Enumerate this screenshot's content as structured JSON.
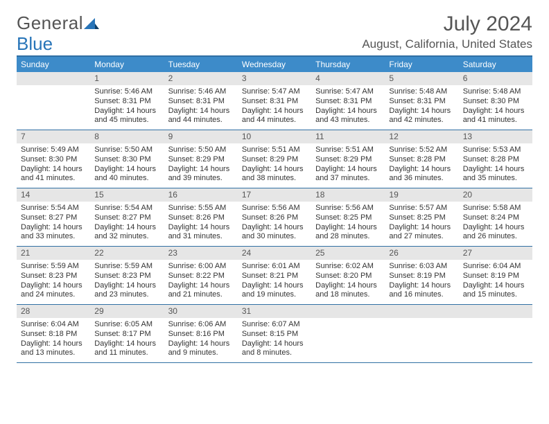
{
  "logo": {
    "part1": "General",
    "part2": "Blue"
  },
  "title": "July 2024",
  "location": "August, California, United States",
  "colors": {
    "header_bar": "#3d8bc9",
    "rule": "#2f6fa3",
    "daynum_bg": "#e6e6e6",
    "text": "#333333",
    "muted": "#555555",
    "logo_blue": "#2774b8"
  },
  "days_of_week": [
    "Sunday",
    "Monday",
    "Tuesday",
    "Wednesday",
    "Thursday",
    "Friday",
    "Saturday"
  ],
  "weeks": [
    [
      {
        "n": "",
        "sunrise": "",
        "sunset": "",
        "daylight": ""
      },
      {
        "n": "1",
        "sunrise": "Sunrise: 5:46 AM",
        "sunset": "Sunset: 8:31 PM",
        "daylight": "Daylight: 14 hours and 45 minutes."
      },
      {
        "n": "2",
        "sunrise": "Sunrise: 5:46 AM",
        "sunset": "Sunset: 8:31 PM",
        "daylight": "Daylight: 14 hours and 44 minutes."
      },
      {
        "n": "3",
        "sunrise": "Sunrise: 5:47 AM",
        "sunset": "Sunset: 8:31 PM",
        "daylight": "Daylight: 14 hours and 44 minutes."
      },
      {
        "n": "4",
        "sunrise": "Sunrise: 5:47 AM",
        "sunset": "Sunset: 8:31 PM",
        "daylight": "Daylight: 14 hours and 43 minutes."
      },
      {
        "n": "5",
        "sunrise": "Sunrise: 5:48 AM",
        "sunset": "Sunset: 8:31 PM",
        "daylight": "Daylight: 14 hours and 42 minutes."
      },
      {
        "n": "6",
        "sunrise": "Sunrise: 5:48 AM",
        "sunset": "Sunset: 8:30 PM",
        "daylight": "Daylight: 14 hours and 41 minutes."
      }
    ],
    [
      {
        "n": "7",
        "sunrise": "Sunrise: 5:49 AM",
        "sunset": "Sunset: 8:30 PM",
        "daylight": "Daylight: 14 hours and 41 minutes."
      },
      {
        "n": "8",
        "sunrise": "Sunrise: 5:50 AM",
        "sunset": "Sunset: 8:30 PM",
        "daylight": "Daylight: 14 hours and 40 minutes."
      },
      {
        "n": "9",
        "sunrise": "Sunrise: 5:50 AM",
        "sunset": "Sunset: 8:29 PM",
        "daylight": "Daylight: 14 hours and 39 minutes."
      },
      {
        "n": "10",
        "sunrise": "Sunrise: 5:51 AM",
        "sunset": "Sunset: 8:29 PM",
        "daylight": "Daylight: 14 hours and 38 minutes."
      },
      {
        "n": "11",
        "sunrise": "Sunrise: 5:51 AM",
        "sunset": "Sunset: 8:29 PM",
        "daylight": "Daylight: 14 hours and 37 minutes."
      },
      {
        "n": "12",
        "sunrise": "Sunrise: 5:52 AM",
        "sunset": "Sunset: 8:28 PM",
        "daylight": "Daylight: 14 hours and 36 minutes."
      },
      {
        "n": "13",
        "sunrise": "Sunrise: 5:53 AM",
        "sunset": "Sunset: 8:28 PM",
        "daylight": "Daylight: 14 hours and 35 minutes."
      }
    ],
    [
      {
        "n": "14",
        "sunrise": "Sunrise: 5:54 AM",
        "sunset": "Sunset: 8:27 PM",
        "daylight": "Daylight: 14 hours and 33 minutes."
      },
      {
        "n": "15",
        "sunrise": "Sunrise: 5:54 AM",
        "sunset": "Sunset: 8:27 PM",
        "daylight": "Daylight: 14 hours and 32 minutes."
      },
      {
        "n": "16",
        "sunrise": "Sunrise: 5:55 AM",
        "sunset": "Sunset: 8:26 PM",
        "daylight": "Daylight: 14 hours and 31 minutes."
      },
      {
        "n": "17",
        "sunrise": "Sunrise: 5:56 AM",
        "sunset": "Sunset: 8:26 PM",
        "daylight": "Daylight: 14 hours and 30 minutes."
      },
      {
        "n": "18",
        "sunrise": "Sunrise: 5:56 AM",
        "sunset": "Sunset: 8:25 PM",
        "daylight": "Daylight: 14 hours and 28 minutes."
      },
      {
        "n": "19",
        "sunrise": "Sunrise: 5:57 AM",
        "sunset": "Sunset: 8:25 PM",
        "daylight": "Daylight: 14 hours and 27 minutes."
      },
      {
        "n": "20",
        "sunrise": "Sunrise: 5:58 AM",
        "sunset": "Sunset: 8:24 PM",
        "daylight": "Daylight: 14 hours and 26 minutes."
      }
    ],
    [
      {
        "n": "21",
        "sunrise": "Sunrise: 5:59 AM",
        "sunset": "Sunset: 8:23 PM",
        "daylight": "Daylight: 14 hours and 24 minutes."
      },
      {
        "n": "22",
        "sunrise": "Sunrise: 5:59 AM",
        "sunset": "Sunset: 8:23 PM",
        "daylight": "Daylight: 14 hours and 23 minutes."
      },
      {
        "n": "23",
        "sunrise": "Sunrise: 6:00 AM",
        "sunset": "Sunset: 8:22 PM",
        "daylight": "Daylight: 14 hours and 21 minutes."
      },
      {
        "n": "24",
        "sunrise": "Sunrise: 6:01 AM",
        "sunset": "Sunset: 8:21 PM",
        "daylight": "Daylight: 14 hours and 19 minutes."
      },
      {
        "n": "25",
        "sunrise": "Sunrise: 6:02 AM",
        "sunset": "Sunset: 8:20 PM",
        "daylight": "Daylight: 14 hours and 18 minutes."
      },
      {
        "n": "26",
        "sunrise": "Sunrise: 6:03 AM",
        "sunset": "Sunset: 8:19 PM",
        "daylight": "Daylight: 14 hours and 16 minutes."
      },
      {
        "n": "27",
        "sunrise": "Sunrise: 6:04 AM",
        "sunset": "Sunset: 8:19 PM",
        "daylight": "Daylight: 14 hours and 15 minutes."
      }
    ],
    [
      {
        "n": "28",
        "sunrise": "Sunrise: 6:04 AM",
        "sunset": "Sunset: 8:18 PM",
        "daylight": "Daylight: 14 hours and 13 minutes."
      },
      {
        "n": "29",
        "sunrise": "Sunrise: 6:05 AM",
        "sunset": "Sunset: 8:17 PM",
        "daylight": "Daylight: 14 hours and 11 minutes."
      },
      {
        "n": "30",
        "sunrise": "Sunrise: 6:06 AM",
        "sunset": "Sunset: 8:16 PM",
        "daylight": "Daylight: 14 hours and 9 minutes."
      },
      {
        "n": "31",
        "sunrise": "Sunrise: 6:07 AM",
        "sunset": "Sunset: 8:15 PM",
        "daylight": "Daylight: 14 hours and 8 minutes."
      },
      {
        "n": "",
        "sunrise": "",
        "sunset": "",
        "daylight": ""
      },
      {
        "n": "",
        "sunrise": "",
        "sunset": "",
        "daylight": ""
      },
      {
        "n": "",
        "sunrise": "",
        "sunset": "",
        "daylight": ""
      }
    ]
  ]
}
